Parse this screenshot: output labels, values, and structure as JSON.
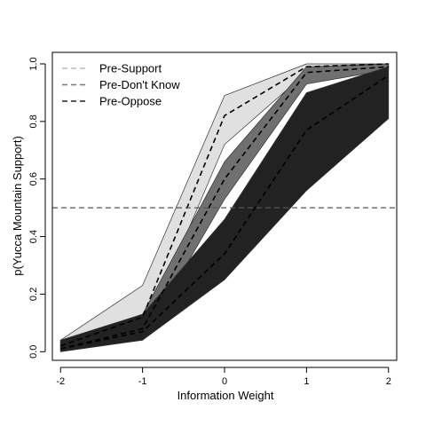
{
  "chart_data": {
    "type": "area",
    "title": "",
    "xlabel": "Information Weight",
    "ylabel": "p(Yucca Mountain Support)",
    "x": [
      -2,
      -1,
      0,
      1,
      2
    ],
    "xlim": [
      -2.1,
      2.1
    ],
    "ylim": [
      -0.03,
      1.04
    ],
    "x_ticks": [
      "-2",
      "-1",
      "0",
      "1",
      "2"
    ],
    "y_ticks": [
      "0.0",
      "0.2",
      "0.4",
      "0.6",
      "0.8",
      "1.0"
    ],
    "y_tick_values": [
      0.0,
      0.2,
      0.4,
      0.6,
      0.8,
      1.0
    ],
    "reference_line": {
      "y": 0.5,
      "style": "dashed",
      "color": "#555555"
    },
    "legend_placement": "top-left",
    "series": [
      {
        "name": "Pre-Support",
        "lower": [
          0.01,
          0.05,
          0.72,
          0.97,
          0.99
        ],
        "mid": [
          0.02,
          0.12,
          0.82,
          0.99,
          1.0
        ],
        "upper": [
          0.04,
          0.23,
          0.89,
          1.0,
          1.0
        ],
        "fill": "#e0e0e0",
        "line": "#000000",
        "legend_color": "#bbbbbb"
      },
      {
        "name": "Pre-Don't Know",
        "lower": [
          0.005,
          0.04,
          0.53,
          0.93,
          0.98
        ],
        "mid": [
          0.01,
          0.08,
          0.6,
          0.97,
          0.99
        ],
        "upper": [
          0.03,
          0.13,
          0.66,
          0.99,
          1.0
        ],
        "fill": "#707070",
        "line": "#000000",
        "legend_color": "#777777"
      },
      {
        "name": "Pre-Oppose",
        "lower": [
          0.0,
          0.04,
          0.25,
          0.56,
          0.81
        ],
        "mid": [
          0.01,
          0.07,
          0.34,
          0.77,
          0.96
        ],
        "upper": [
          0.04,
          0.13,
          0.46,
          0.9,
          0.99
        ],
        "fill": "#222222",
        "line": "#000000",
        "legend_color": "#222222"
      }
    ]
  }
}
